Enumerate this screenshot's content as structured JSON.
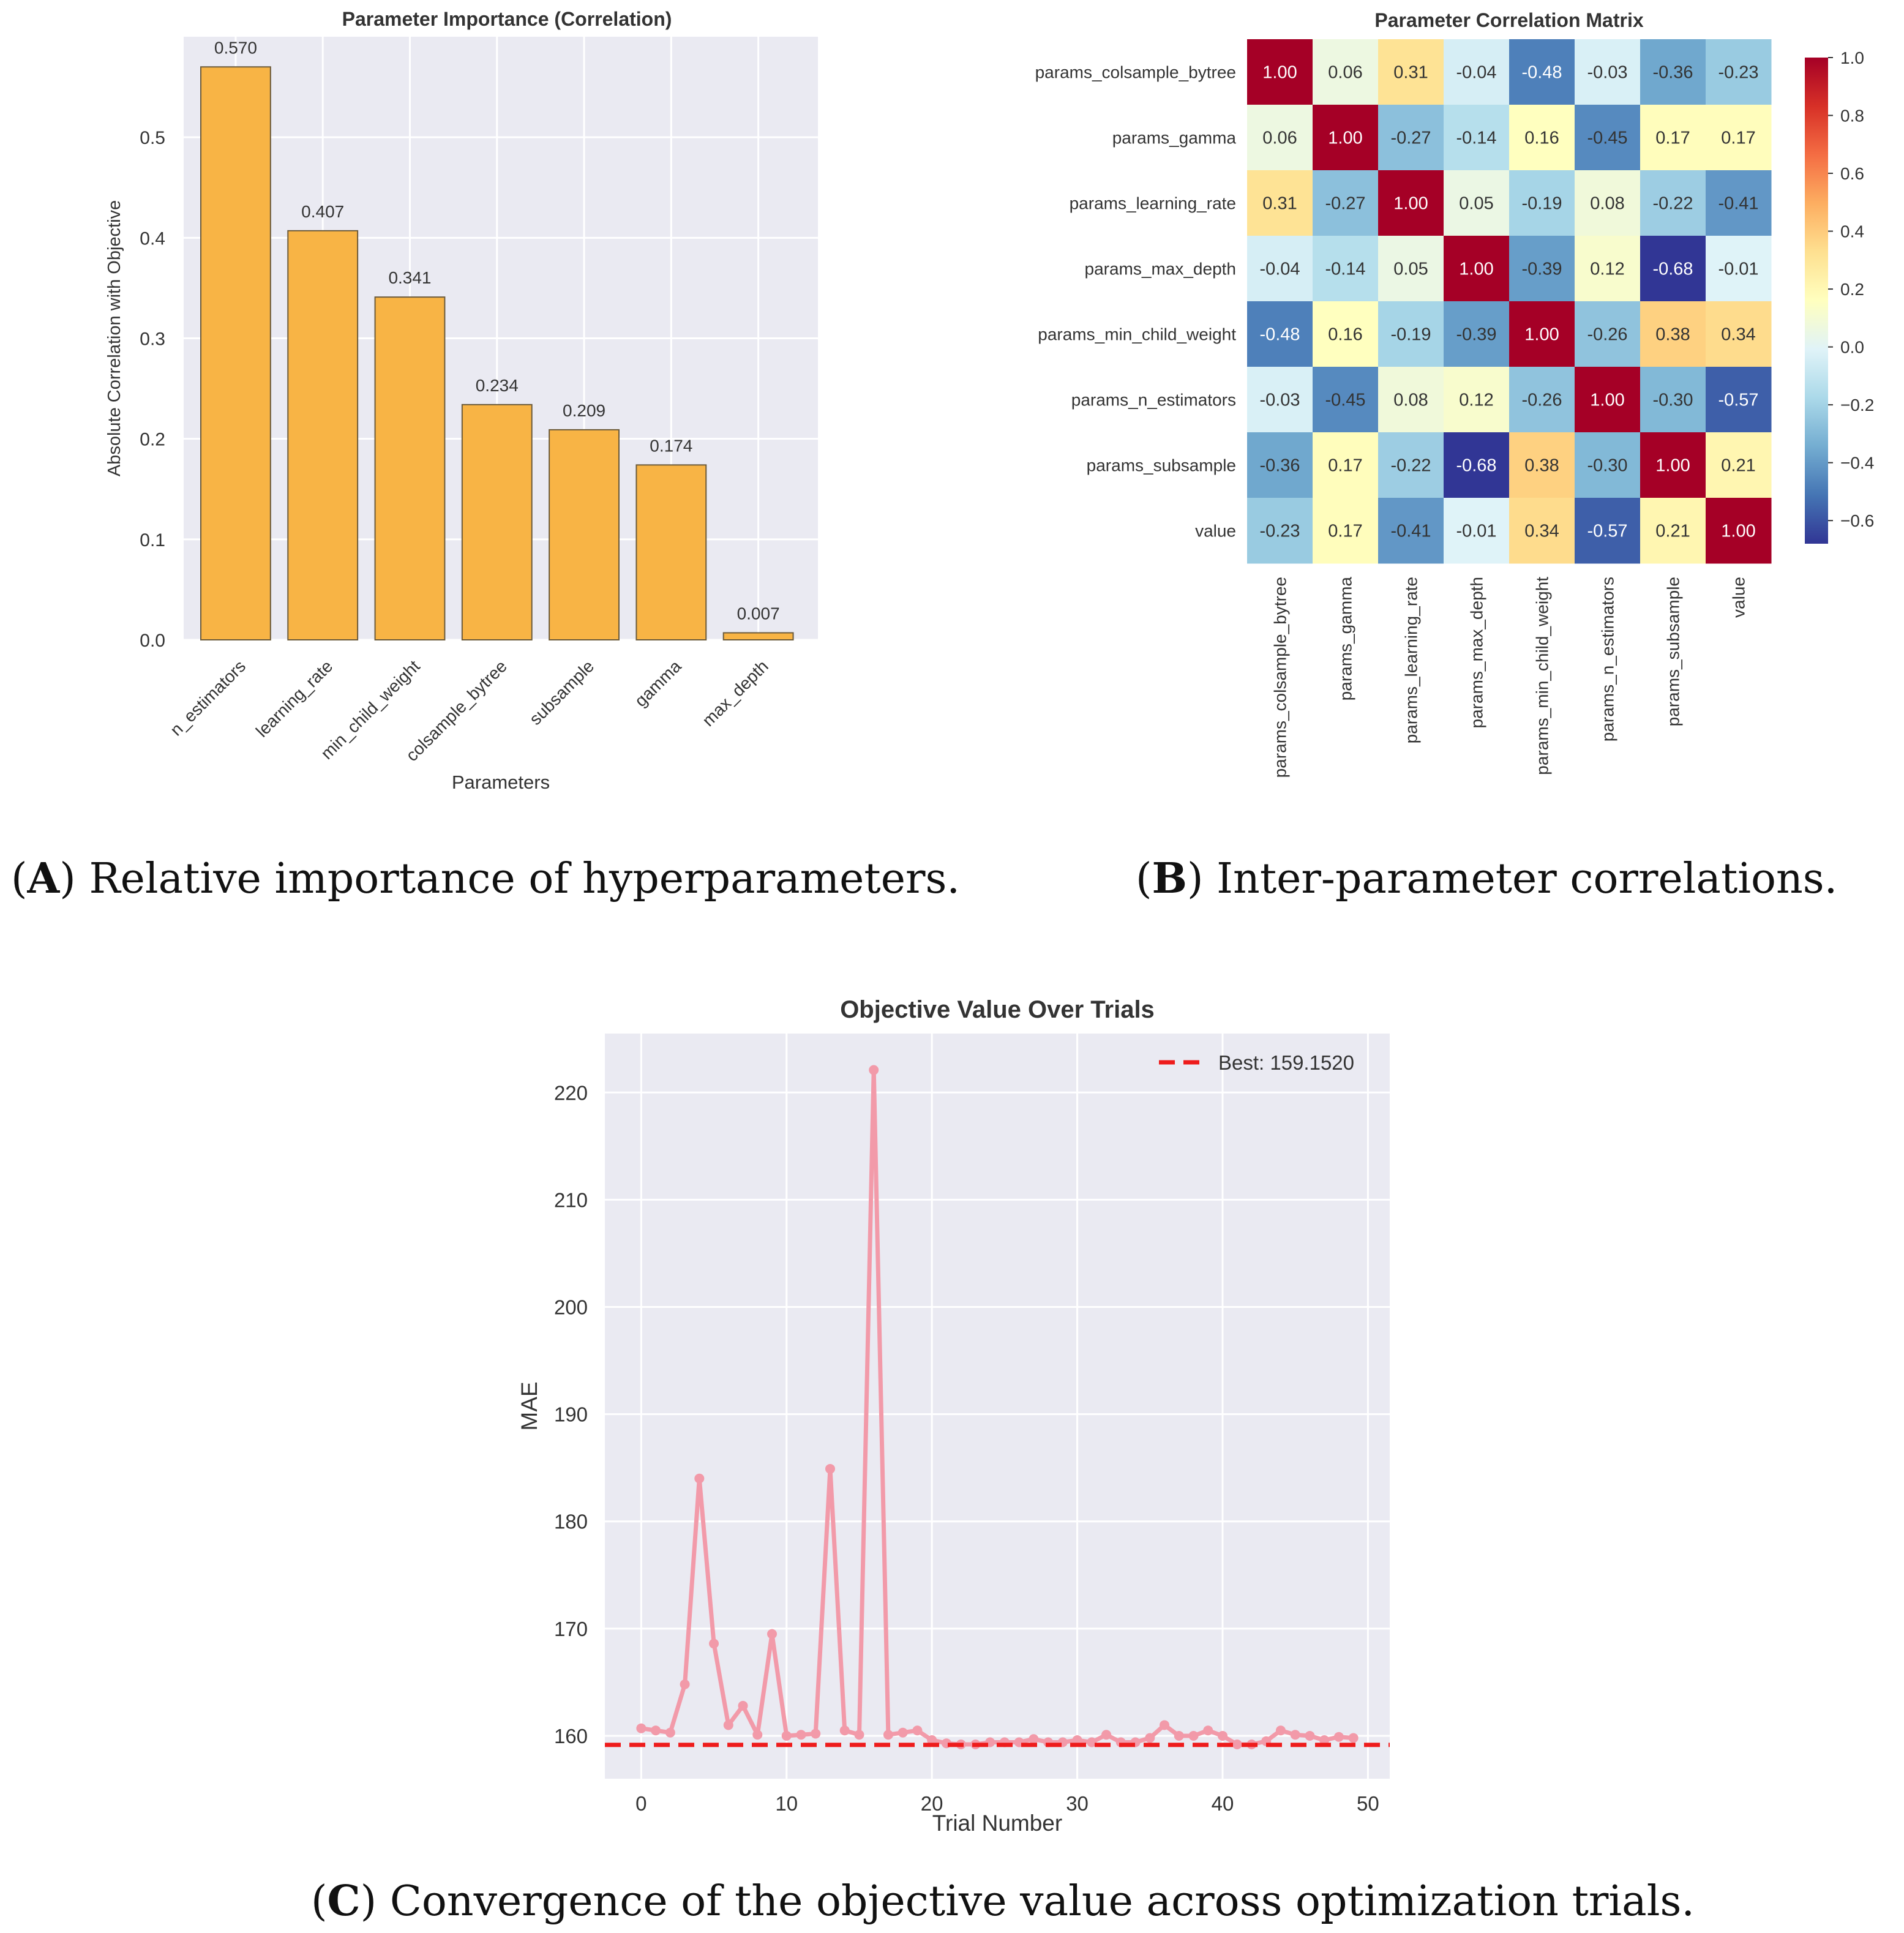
{
  "captions": {
    "a": {
      "letter": "A",
      "text": "Relative importance of hyperparameters."
    },
    "b": {
      "letter": "B",
      "text": "Inter-parameter correlations."
    },
    "c": {
      "letter": "C",
      "text": "Convergence of the objective value across optimization trials."
    }
  },
  "chart_data": [
    {
      "id": "importance",
      "type": "bar",
      "title": "Parameter Importance (Correlation)",
      "xlabel": "Parameters",
      "ylabel": "Absolute Correlation with Objective",
      "categories": [
        "n_estimators",
        "learning_rate",
        "min_child_weight",
        "colsample_bytree",
        "subsample",
        "gamma",
        "max_depth"
      ],
      "values": [
        0.57,
        0.407,
        0.341,
        0.234,
        0.209,
        0.174,
        0.007
      ],
      "value_labels": [
        "0.570",
        "0.407",
        "0.341",
        "0.234",
        "0.209",
        "0.174",
        "0.007"
      ],
      "yticks": [
        0.0,
        0.1,
        0.2,
        0.3,
        0.4,
        0.5
      ],
      "ytick_labels": [
        "0.0",
        "0.1",
        "0.2",
        "0.3",
        "0.4",
        "0.5"
      ],
      "ylim": [
        0,
        0.6
      ],
      "grid": true,
      "colors": {
        "bar": "#f8b445",
        "edge": "#6b5a3a",
        "background": "#eaeaf2",
        "grid": "#ffffff"
      }
    },
    {
      "id": "correlation",
      "type": "heatmap",
      "title": "Parameter Correlation Matrix",
      "labels": [
        "params_colsample_bytree",
        "params_gamma",
        "params_learning_rate",
        "params_max_depth",
        "params_min_child_weight",
        "params_n_estimators",
        "params_subsample",
        "value"
      ],
      "matrix": [
        [
          1.0,
          0.06,
          0.31,
          -0.04,
          -0.48,
          -0.03,
          -0.36,
          -0.23
        ],
        [
          0.06,
          1.0,
          -0.27,
          -0.14,
          0.16,
          -0.45,
          0.17,
          0.17
        ],
        [
          0.31,
          -0.27,
          1.0,
          0.05,
          -0.19,
          0.08,
          -0.22,
          -0.41
        ],
        [
          -0.04,
          -0.14,
          0.05,
          1.0,
          -0.39,
          0.12,
          -0.68,
          -0.01
        ],
        [
          -0.48,
          0.16,
          -0.19,
          -0.39,
          1.0,
          -0.26,
          0.38,
          0.34
        ],
        [
          -0.03,
          -0.45,
          0.08,
          0.12,
          -0.26,
          1.0,
          -0.3,
          -0.57
        ],
        [
          -0.36,
          0.17,
          -0.22,
          -0.68,
          0.38,
          -0.3,
          1.0,
          0.21
        ],
        [
          -0.23,
          0.17,
          -0.41,
          -0.01,
          0.34,
          -0.57,
          0.21,
          1.0
        ]
      ],
      "colorbar": {
        "range": [
          -0.68,
          1.0
        ],
        "ticks": [
          1.0,
          0.8,
          0.6,
          0.4,
          0.2,
          0.0,
          -0.2,
          -0.4,
          -0.6
        ],
        "tick_labels": [
          "1.0",
          "0.8",
          "0.6",
          "0.4",
          "0.2",
          "0.0",
          "−0.2",
          "−0.4",
          "−0.6"
        ],
        "colormap": "RdYlBu_r"
      }
    },
    {
      "id": "convergence",
      "type": "line",
      "title": "Objective Value Over Trials",
      "xlabel": "Trial Number",
      "ylabel": "MAE",
      "x": [
        0,
        1,
        2,
        3,
        4,
        5,
        6,
        7,
        8,
        9,
        10,
        11,
        12,
        13,
        14,
        15,
        16,
        17,
        18,
        19,
        20,
        21,
        22,
        23,
        24,
        25,
        26,
        27,
        28,
        29,
        30,
        31,
        32,
        33,
        34,
        35,
        36,
        37,
        38,
        39,
        40,
        41,
        42,
        43,
        44,
        45,
        46,
        47,
        48,
        49
      ],
      "y": [
        160.7,
        160.5,
        160.3,
        164.8,
        184.0,
        168.6,
        161.0,
        162.8,
        160.1,
        169.5,
        160.0,
        160.1,
        160.2,
        184.9,
        160.5,
        160.1,
        222.1,
        160.1,
        160.3,
        160.5,
        159.6,
        159.3,
        159.2,
        159.2,
        159.4,
        159.4,
        159.4,
        159.7,
        159.4,
        159.4,
        159.6,
        159.4,
        160.1,
        159.4,
        159.4,
        159.8,
        161.0,
        160.0,
        160.0,
        160.5,
        160.0,
        159.2,
        159.2,
        159.5,
        160.5,
        160.1,
        160.0,
        159.6,
        159.9,
        159.8
      ],
      "best": 159.152,
      "legend": "Best: 159.1520",
      "legend_position": "top-right",
      "xticks": [
        0,
        10,
        20,
        30,
        40,
        50
      ],
      "xtick_labels": [
        "0",
        "10",
        "20",
        "30",
        "40",
        "50"
      ],
      "yticks": [
        160,
        170,
        180,
        190,
        200,
        210,
        220
      ],
      "ytick_labels": [
        "160",
        "170",
        "180",
        "190",
        "200",
        "210",
        "220"
      ],
      "xlim": [
        -2.5,
        51.5
      ],
      "ylim": [
        156,
        225.5
      ],
      "grid": true,
      "colors": {
        "line": "#f29aa9",
        "best": "#ee1c1c",
        "background": "#eaeaf2",
        "grid": "#ffffff"
      }
    }
  ]
}
